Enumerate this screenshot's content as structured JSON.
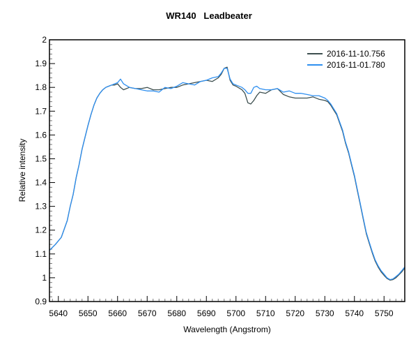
{
  "chart_data": {
    "type": "line",
    "title": "WR140   Leadbeater",
    "xlabel": "Wavelength (Angstrom)",
    "ylabel": "Relative intensity",
    "xlim": [
      5637,
      5757
    ],
    "ylim": [
      0.9,
      2.0
    ],
    "xticks": [
      5640,
      5650,
      5660,
      5670,
      5680,
      5690,
      5700,
      5710,
      5720,
      5730,
      5740,
      5750
    ],
    "yticks": [
      "0.9",
      "1",
      "1.1",
      "1.2",
      "1.3",
      "1.4",
      "1.5",
      "1.6",
      "1.7",
      "1.8",
      "1.9",
      "2"
    ],
    "grid": false,
    "legend_position": "top-right",
    "x": [
      5637,
      5639,
      5641,
      5643,
      5644,
      5645,
      5646,
      5647,
      5648,
      5649,
      5650,
      5651,
      5652,
      5653,
      5654,
      5655,
      5656,
      5657,
      5658,
      5659,
      5660,
      5661,
      5662,
      5664,
      5666,
      5668,
      5670,
      5672,
      5674,
      5676,
      5678,
      5680,
      5682,
      5684,
      5686,
      5688,
      5690,
      5692,
      5694,
      5695,
      5696,
      5697,
      5698,
      5699,
      5700,
      5702,
      5703,
      5704,
      5705,
      5706,
      5707,
      5708,
      5710,
      5712,
      5714,
      5716,
      5718,
      5720,
      5722,
      5724,
      5726,
      5728,
      5730,
      5731,
      5732,
      5733,
      5734,
      5735,
      5736,
      5737,
      5738,
      5739,
      5740,
      5741,
      5742,
      5743,
      5744,
      5745,
      5746,
      5747,
      5748,
      5749,
      5750,
      5751,
      5752,
      5753,
      5754,
      5755,
      5756,
      5757
    ],
    "series": [
      {
        "name": "2016-11-10.756",
        "color": "#3d4f4f",
        "values": [
          1.115,
          1.14,
          1.17,
          1.24,
          1.3,
          1.35,
          1.42,
          1.475,
          1.54,
          1.59,
          1.64,
          1.685,
          1.725,
          1.755,
          1.775,
          1.79,
          1.8,
          1.805,
          1.81,
          1.81,
          1.815,
          1.8,
          1.79,
          1.8,
          1.795,
          1.795,
          1.8,
          1.79,
          1.79,
          1.795,
          1.8,
          1.8,
          1.81,
          1.815,
          1.82,
          1.825,
          1.83,
          1.825,
          1.84,
          1.855,
          1.88,
          1.885,
          1.83,
          1.81,
          1.805,
          1.79,
          1.775,
          1.735,
          1.73,
          1.745,
          1.765,
          1.78,
          1.775,
          1.79,
          1.795,
          1.77,
          1.76,
          1.755,
          1.755,
          1.755,
          1.76,
          1.75,
          1.745,
          1.74,
          1.725,
          1.705,
          1.685,
          1.65,
          1.615,
          1.565,
          1.525,
          1.475,
          1.425,
          1.365,
          1.305,
          1.245,
          1.185,
          1.145,
          1.105,
          1.07,
          1.045,
          1.025,
          1.01,
          0.997,
          0.99,
          0.992,
          1.0,
          1.012,
          1.025,
          1.042
        ]
      },
      {
        "name": "2016-11-01.780",
        "color": "#2e8ff0",
        "values": [
          1.115,
          1.14,
          1.17,
          1.24,
          1.3,
          1.35,
          1.42,
          1.475,
          1.54,
          1.59,
          1.64,
          1.685,
          1.725,
          1.755,
          1.775,
          1.79,
          1.8,
          1.805,
          1.81,
          1.815,
          1.82,
          1.835,
          1.815,
          1.8,
          1.795,
          1.79,
          1.785,
          1.785,
          1.78,
          1.8,
          1.795,
          1.805,
          1.82,
          1.815,
          1.81,
          1.825,
          1.83,
          1.84,
          1.845,
          1.86,
          1.88,
          1.88,
          1.835,
          1.815,
          1.81,
          1.8,
          1.79,
          1.775,
          1.775,
          1.8,
          1.805,
          1.795,
          1.79,
          1.79,
          1.795,
          1.78,
          1.785,
          1.775,
          1.775,
          1.77,
          1.765,
          1.765,
          1.755,
          1.745,
          1.73,
          1.71,
          1.69,
          1.655,
          1.62,
          1.57,
          1.53,
          1.48,
          1.43,
          1.37,
          1.31,
          1.25,
          1.19,
          1.15,
          1.11,
          1.075,
          1.05,
          1.03,
          1.015,
          1.0,
          0.992,
          0.995,
          1.005,
          1.015,
          1.03,
          1.045
        ]
      }
    ]
  }
}
